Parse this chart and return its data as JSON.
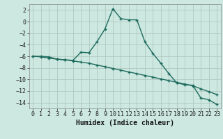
{
  "xlabel": "Humidex (Indice chaleur)",
  "background_color": "#cce8e0",
  "grid_color": "#b0c8c0",
  "line_color": "#1e6b5e",
  "xlim": [
    -0.5,
    23.5
  ],
  "ylim": [
    -15,
    3
  ],
  "yticks": [
    2,
    0,
    -2,
    -4,
    -6,
    -8,
    -10,
    -12,
    -14
  ],
  "xticks": [
    0,
    1,
    2,
    3,
    4,
    5,
    6,
    7,
    8,
    9,
    10,
    11,
    12,
    13,
    14,
    15,
    16,
    17,
    18,
    19,
    20,
    21,
    22,
    23
  ],
  "series1_x": [
    0,
    1,
    2,
    3,
    4,
    5,
    6,
    7,
    8,
    9,
    10,
    11,
    12,
    13,
    14,
    15,
    16,
    17,
    18,
    19,
    20,
    21,
    22,
    23
  ],
  "series1_y": [
    -6.0,
    -6.0,
    -6.1,
    -6.5,
    -6.6,
    -6.7,
    -5.3,
    -5.4,
    -3.5,
    -1.3,
    2.2,
    0.5,
    0.3,
    0.3,
    -3.5,
    -5.5,
    -7.2,
    -9.0,
    -10.6,
    -10.9,
    -11.0,
    -13.2,
    -13.5,
    -14.3
  ],
  "series2_x": [
    0,
    1,
    2,
    3,
    4,
    5,
    6,
    7,
    8,
    9,
    10,
    11,
    12,
    13,
    14,
    15,
    16,
    17,
    18,
    19,
    20,
    21,
    22,
    23
  ],
  "series2_y": [
    -6.0,
    -6.1,
    -6.3,
    -6.5,
    -6.6,
    -6.8,
    -7.0,
    -7.2,
    -7.5,
    -7.8,
    -8.1,
    -8.4,
    -8.7,
    -9.0,
    -9.3,
    -9.6,
    -9.9,
    -10.2,
    -10.5,
    -10.8,
    -11.1,
    -11.6,
    -12.1,
    -12.6
  ],
  "xlabel_fontsize": 7,
  "tick_fontsize": 6,
  "ylabel_fontsize": 6,
  "linewidth": 1.0,
  "markersize": 3.5
}
